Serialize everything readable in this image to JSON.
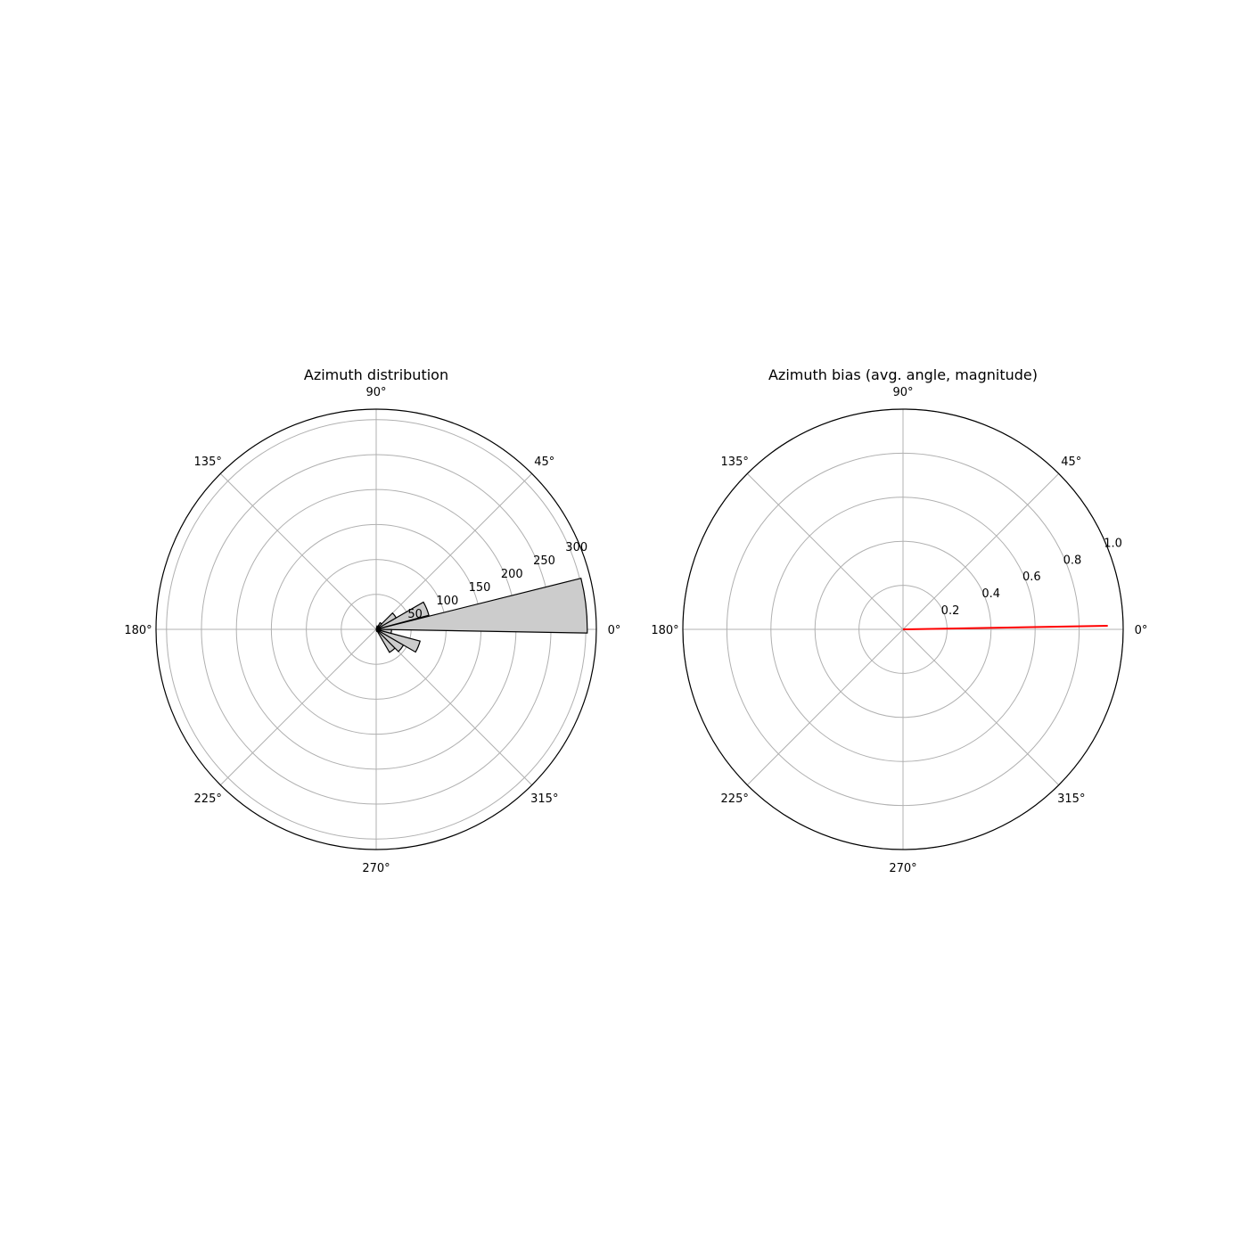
{
  "colors": {
    "grid": "#b0b0b0",
    "spine": "#000000",
    "bar_fill": "#cccccc",
    "bar_edge": "#000000",
    "bias_line": "#ff0000"
  },
  "chart_data": [
    {
      "type": "polar-bar",
      "title": "Azimuth distribution",
      "angle_tick_labels": [
        "0°",
        "45°",
        "90°",
        "135°",
        "180°",
        "225°",
        "270°",
        "315°"
      ],
      "angle_ticks_deg": [
        0,
        45,
        90,
        135,
        180,
        225,
        270,
        315
      ],
      "radial_ticks": [
        50,
        100,
        150,
        200,
        250,
        300
      ],
      "radial_tick_labels": [
        "50",
        "100",
        "150",
        "200",
        "250",
        "300"
      ],
      "rlim": [
        0,
        315
      ],
      "grid": true,
      "bins": [
        {
          "start_deg": -1.0,
          "end_deg": 14.0,
          "value": 302
        },
        {
          "start_deg": 15.0,
          "end_deg": 30.0,
          "value": 78
        },
        {
          "start_deg": 30.0,
          "end_deg": 45.0,
          "value": 33
        },
        {
          "start_deg": 45.0,
          "end_deg": 60.0,
          "value": 11
        },
        {
          "start_deg": 60.0,
          "end_deg": 75.0,
          "value": 5
        },
        {
          "start_deg": 285.0,
          "end_deg": 300.0,
          "value": 3
        },
        {
          "start_deg": 300.0,
          "end_deg": 315.0,
          "value": 38
        },
        {
          "start_deg": 315.0,
          "end_deg": 330.0,
          "value": 45
        },
        {
          "start_deg": 330.0,
          "end_deg": 345.0,
          "value": 65
        },
        {
          "start_deg": 345.0,
          "end_deg": 359.0,
          "value": 22
        }
      ]
    },
    {
      "type": "polar-line",
      "title": "Azimuth bias (avg. angle, magnitude)",
      "angle_tick_labels": [
        "0°",
        "45°",
        "90°",
        "135°",
        "180°",
        "225°",
        "270°",
        "315°"
      ],
      "angle_ticks_deg": [
        0,
        45,
        90,
        135,
        180,
        225,
        270,
        315
      ],
      "radial_ticks": [
        0.2,
        0.4,
        0.6,
        0.8,
        1.0
      ],
      "radial_tick_labels": [
        "0.2",
        "0.4",
        "0.6",
        "0.8",
        "1.0"
      ],
      "rlim": [
        0,
        1.0
      ],
      "grid": true,
      "bias": {
        "angle_deg": 1.0,
        "magnitude": 0.93
      }
    }
  ]
}
